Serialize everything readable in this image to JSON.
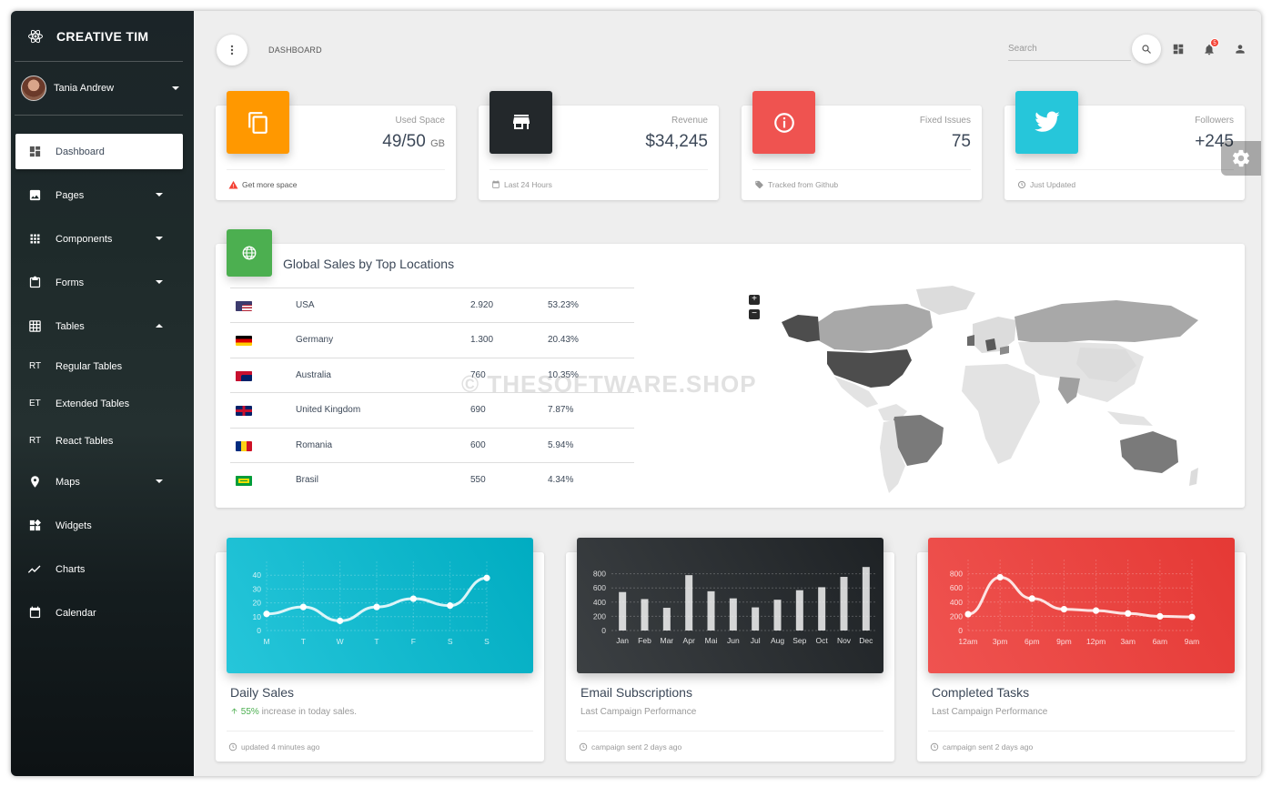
{
  "brand": {
    "name": "CREATIVE TIM"
  },
  "user": {
    "name": "Tania Andrew"
  },
  "sidebar": {
    "items": [
      {
        "label": "Dashboard"
      },
      {
        "label": "Pages"
      },
      {
        "label": "Components"
      },
      {
        "label": "Forms"
      },
      {
        "label": "Tables"
      },
      {
        "label": "Regular Tables",
        "mini": "RT"
      },
      {
        "label": "Extended Tables",
        "mini": "ET"
      },
      {
        "label": "React Tables",
        "mini": "RT"
      },
      {
        "label": "Maps"
      },
      {
        "label": "Widgets"
      },
      {
        "label": "Charts"
      },
      {
        "label": "Calendar"
      }
    ]
  },
  "topbar": {
    "breadcrumb": "DASHBOARD",
    "search_placeholder": "Search",
    "notification_count": "5"
  },
  "stats": [
    {
      "label": "Used Space",
      "value": "49/50",
      "unit": "GB",
      "footer": "Get more space",
      "color": "#ff9800"
    },
    {
      "label": "Revenue",
      "value": "$34,245",
      "footer": "Last 24 Hours",
      "color": "#23282b"
    },
    {
      "label": "Fixed Issues",
      "value": "75",
      "footer": "Tracked from Github",
      "color": "#ef5350"
    },
    {
      "label": "Followers",
      "value": "+245",
      "footer": "Just Updated",
      "color": "#26c6da"
    }
  ],
  "global_sales": {
    "title": "Global Sales by Top Locations",
    "rows": [
      {
        "country": "USA",
        "sales": "2.920",
        "pct": "53.23%"
      },
      {
        "country": "Germany",
        "sales": "1.300",
        "pct": "20.43%"
      },
      {
        "country": "Australia",
        "sales": "760",
        "pct": "10.35%"
      },
      {
        "country": "United Kingdom",
        "sales": "690",
        "pct": "7.87%"
      },
      {
        "country": "Romania",
        "sales": "600",
        "pct": "5.94%"
      },
      {
        "country": "Brasil",
        "sales": "550",
        "pct": "4.34%"
      }
    ],
    "zoom_in": "+",
    "zoom_out": "−"
  },
  "watermark": "© THESOFTWARE.SHOP",
  "charts": [
    {
      "title": "Daily Sales",
      "subtitle_highlight": "55%",
      "subtitle": " increase in today sales.",
      "footer": "updated 4 minutes ago"
    },
    {
      "title": "Email Subscriptions",
      "subtitle": "Last Campaign Performance",
      "footer": "campaign sent 2 days ago"
    },
    {
      "title": "Completed Tasks",
      "subtitle": "Last Campaign Performance",
      "footer": "campaign sent 2 days ago"
    }
  ],
  "chart_data": [
    {
      "type": "line",
      "categories": [
        "M",
        "T",
        "W",
        "T",
        "F",
        "S",
        "S"
      ],
      "values": [
        12,
        17,
        7,
        17,
        23,
        18,
        38
      ],
      "ylim": [
        0,
        50
      ],
      "yticks": [
        0,
        10,
        20,
        30,
        40
      ],
      "color": "#26c6da"
    },
    {
      "type": "bar",
      "categories": [
        "Jan",
        "Feb",
        "Mar",
        "Apr",
        "Mai",
        "Jun",
        "Jul",
        "Aug",
        "Sep",
        "Oct",
        "Nov",
        "Dec"
      ],
      "values": [
        542,
        443,
        320,
        780,
        553,
        453,
        326,
        434,
        568,
        610,
        756,
        895
      ],
      "ylim": [
        0,
        1000
      ],
      "yticks": [
        0,
        200,
        400,
        600,
        800
      ],
      "color": "#23282b"
    },
    {
      "type": "line",
      "categories": [
        "12am",
        "3pm",
        "6pm",
        "9pm",
        "12pm",
        "3am",
        "6am",
        "9am"
      ],
      "values": [
        230,
        750,
        450,
        300,
        280,
        240,
        200,
        190
      ],
      "ylim": [
        0,
        1000
      ],
      "yticks": [
        0,
        200,
        400,
        600,
        800
      ],
      "color": "#ef5350"
    }
  ]
}
